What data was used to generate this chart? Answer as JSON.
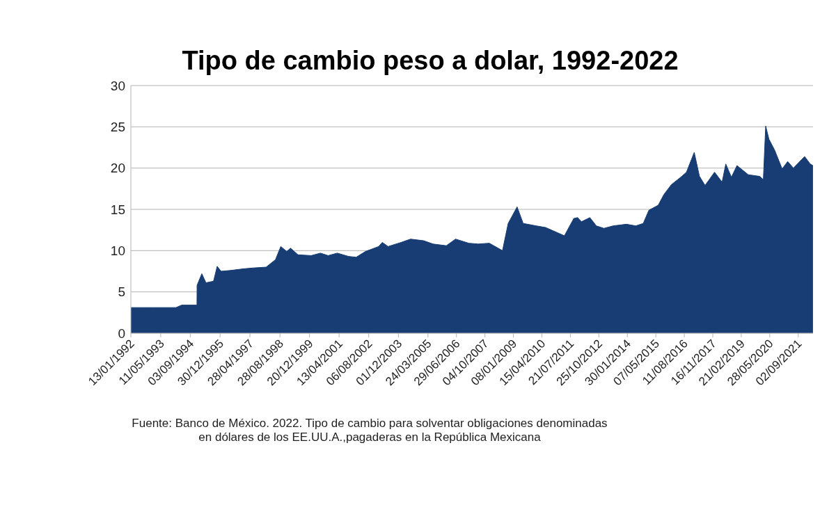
{
  "chart_data": {
    "type": "area",
    "title": "Tipo de cambio peso a dolar, 1992-2022",
    "x": [
      "1992-01-13",
      "1992-06-15",
      "1993-01-15",
      "1993-06-15",
      "1994-01-14",
      "1994-04-15",
      "1994-12-20",
      "1994-12-22",
      "1995-03-09",
      "1995-05-15",
      "1995-09-15",
      "1995-11-13",
      "1996-01-15",
      "1996-06-14",
      "1997-01-15",
      "1997-06-16",
      "1998-01-15",
      "1998-06-15",
      "1998-09-10",
      "1998-12-15",
      "1999-02-15",
      "1999-06-15",
      "2000-01-14",
      "2000-06-15",
      "2000-10-16",
      "2001-03-15",
      "2001-09-14",
      "2002-01-15",
      "2002-06-14",
      "2003-01-15",
      "2003-03-14",
      "2003-06-16",
      "2004-01-15",
      "2004-06-15",
      "2005-01-14",
      "2005-06-15",
      "2006-01-16",
      "2006-06-15",
      "2007-01-15",
      "2007-06-15",
      "2007-12-14",
      "2008-07-15",
      "2008-10-15",
      "2009-03-09",
      "2009-06-15",
      "2010-01-15",
      "2010-06-15",
      "2011-04-15",
      "2011-09-15",
      "2011-11-15",
      "2012-01-16",
      "2012-06-01",
      "2012-09-14",
      "2013-01-15",
      "2013-06-14",
      "2014-01-15",
      "2014-06-16",
      "2014-10-15",
      "2015-01-15",
      "2015-06-15",
      "2015-09-15",
      "2016-01-15",
      "2016-06-15",
      "2016-09-15",
      "2017-01-19",
      "2017-04-14",
      "2017-07-14",
      "2017-12-15",
      "2018-04-16",
      "2018-06-15",
      "2018-09-14",
      "2018-12-14",
      "2019-06-14",
      "2019-12-16",
      "2020-02-14",
      "2020-03-23",
      "2020-05-15",
      "2020-08-14",
      "2020-12-15",
      "2021-03-15",
      "2021-06-15",
      "2021-12-15",
      "2022-03-15",
      "2022-04-29"
    ],
    "series": [
      {
        "color": "#173d74",
        "values": [
          3.1,
          3.1,
          3.1,
          3.1,
          3.1,
          3.4,
          3.4,
          5.8,
          7.2,
          6.1,
          6.3,
          8.1,
          7.5,
          7.6,
          7.8,
          7.9,
          8.0,
          8.9,
          10.5,
          9.9,
          10.3,
          9.5,
          9.4,
          9.7,
          9.4,
          9.7,
          9.3,
          9.2,
          9.9,
          10.5,
          11.0,
          10.5,
          11.0,
          11.4,
          11.2,
          10.8,
          10.6,
          11.4,
          10.9,
          10.8,
          10.9,
          10.0,
          13.3,
          15.3,
          13.3,
          13.0,
          12.8,
          11.8,
          13.9,
          14.0,
          13.5,
          14.0,
          13.0,
          12.7,
          13.0,
          13.2,
          13.0,
          13.3,
          14.9,
          15.5,
          16.8,
          18.0,
          18.9,
          19.5,
          21.9,
          19.0,
          17.9,
          19.5,
          18.3,
          20.5,
          18.9,
          20.3,
          19.2,
          19.0,
          18.6,
          25.1,
          23.5,
          22.2,
          19.9,
          20.8,
          20.0,
          21.4,
          20.5,
          20.3
        ]
      }
    ],
    "xlim": [
      "1992-01-13",
      "2022-04-30"
    ],
    "xticks": [
      {
        "value": "1992-01-13",
        "label": "13/01/1992"
      },
      {
        "value": "1993-05-11",
        "label": "11/05/1993"
      },
      {
        "value": "1994-09-03",
        "label": "03/09/1994"
      },
      {
        "value": "1995-12-30",
        "label": "30/12/1995"
      },
      {
        "value": "1997-04-28",
        "label": "28/04/1997"
      },
      {
        "value": "1998-08-28",
        "label": "28/08/1998"
      },
      {
        "value": "1999-12-20",
        "label": "20/12/1999"
      },
      {
        "value": "2001-04-13",
        "label": "13/04/2001"
      },
      {
        "value": "2002-08-06",
        "label": "06/08/2002"
      },
      {
        "value": "2003-12-01",
        "label": "01/12/2003"
      },
      {
        "value": "2005-03-24",
        "label": "24/03/2005"
      },
      {
        "value": "2006-06-29",
        "label": "29/06/2006"
      },
      {
        "value": "2007-10-04",
        "label": "04/10/2007"
      },
      {
        "value": "2009-01-08",
        "label": "08/01/2009"
      },
      {
        "value": "2010-04-15",
        "label": "15/04/2010"
      },
      {
        "value": "2011-07-21",
        "label": "21/07/2011"
      },
      {
        "value": "2012-10-25",
        "label": "25/10/2012"
      },
      {
        "value": "2014-01-30",
        "label": "30/01/2014"
      },
      {
        "value": "2015-05-07",
        "label": "07/05/2015"
      },
      {
        "value": "2016-08-11",
        "label": "11/08/2016"
      },
      {
        "value": "2017-11-16",
        "label": "16/11/2017"
      },
      {
        "value": "2019-02-21",
        "label": "21/02/2019"
      },
      {
        "value": "2020-05-28",
        "label": "28/05/2020"
      },
      {
        "value": "2021-09-02",
        "label": "02/09/2021"
      }
    ],
    "ylim": [
      0,
      30
    ],
    "yticks": [
      0,
      5,
      10,
      15,
      20,
      25,
      30
    ],
    "grid": "y",
    "legend": false,
    "annotations": [
      "Fuente: Banco de México. 2022. Tipo de cambio para solventar obligaciones denominadas\nen dólares de los EE.UU.A.,pagaderas en la República Mexicana"
    ]
  }
}
